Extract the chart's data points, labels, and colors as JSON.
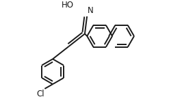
{
  "background_color": "#ffffff",
  "line_color": "#1a1a1a",
  "line_width": 1.4,
  "dbo": 0.018,
  "figsize": [
    2.47,
    1.58
  ],
  "dpi": 100,
  "HO_label": "HO",
  "N_label": "N",
  "Cl_label": "Cl",
  "fontsize": 8.5
}
